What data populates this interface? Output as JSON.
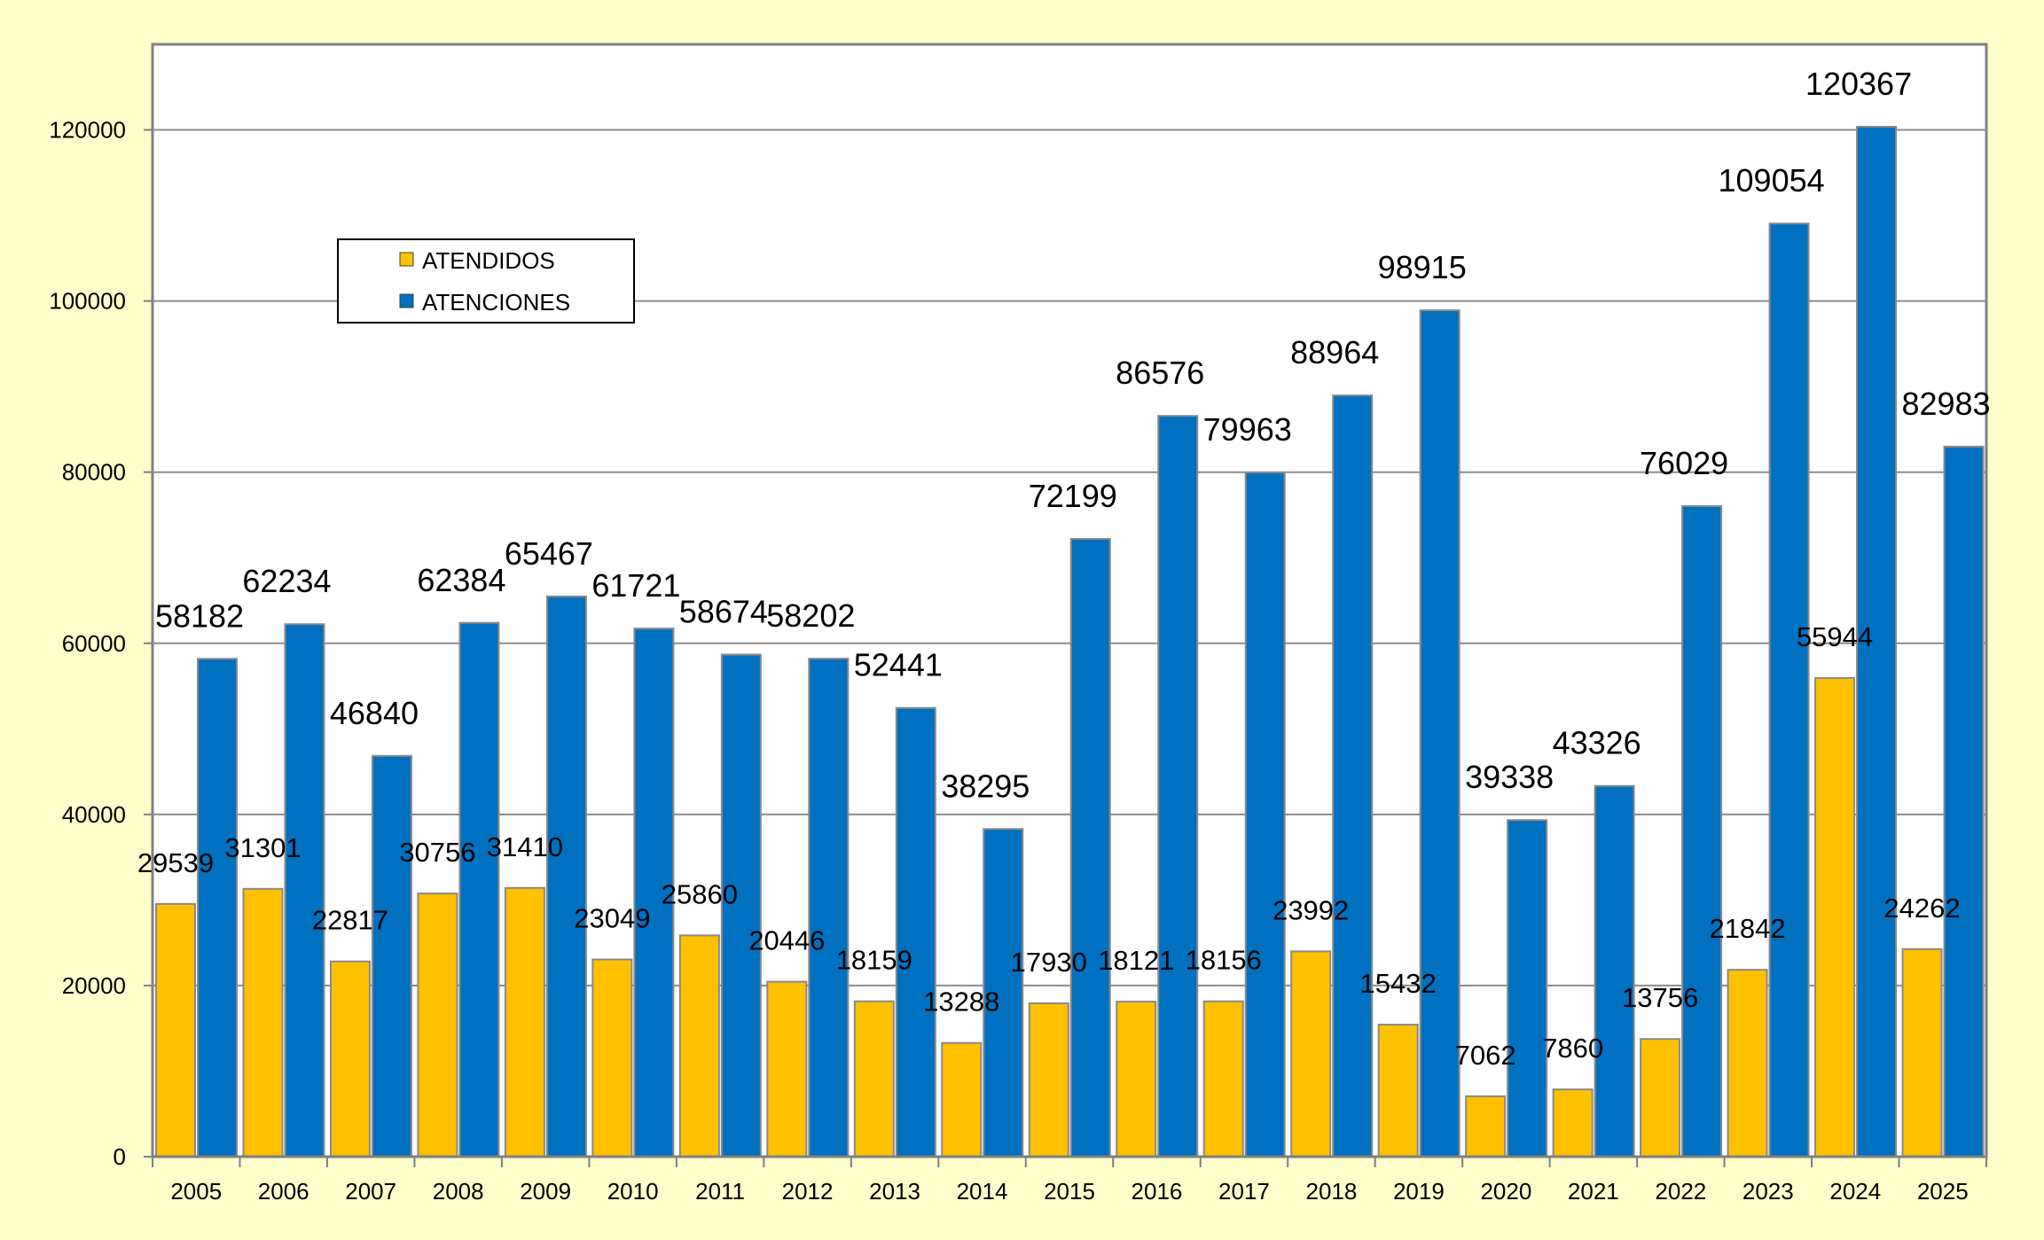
{
  "chart_data": {
    "type": "bar",
    "title": "",
    "xlabel": "",
    "ylabel": "",
    "ylim": [
      0,
      130000
    ],
    "yticks": [
      0,
      20000,
      40000,
      60000,
      80000,
      100000,
      120000
    ],
    "grid": true,
    "legend_position": "top-left",
    "categories": [
      "2005",
      "2006",
      "2007",
      "2008",
      "2009",
      "2010",
      "2011",
      "2012",
      "2013",
      "2014",
      "2015",
      "2016",
      "2017",
      "2018",
      "2019",
      "2020",
      "2021",
      "2022",
      "2023",
      "2024",
      "2025"
    ],
    "series": [
      {
        "name": "ATENDIDOS",
        "color": "#ffc000",
        "values": [
          29539,
          31301,
          22817,
          30756,
          31410,
          23049,
          25860,
          20446,
          18159,
          13288,
          17930,
          18121,
          18156,
          23992,
          15432,
          7062,
          7860,
          13756,
          21842,
          55944,
          24262
        ]
      },
      {
        "name": "ATENCIONES",
        "color": "#0070c0",
        "values": [
          58182,
          62234,
          46840,
          62384,
          65467,
          61721,
          58674,
          58202,
          52441,
          38295,
          72199,
          86576,
          79963,
          88964,
          98915,
          39338,
          43326,
          76029,
          109054,
          120367,
          82983
        ]
      }
    ]
  }
}
